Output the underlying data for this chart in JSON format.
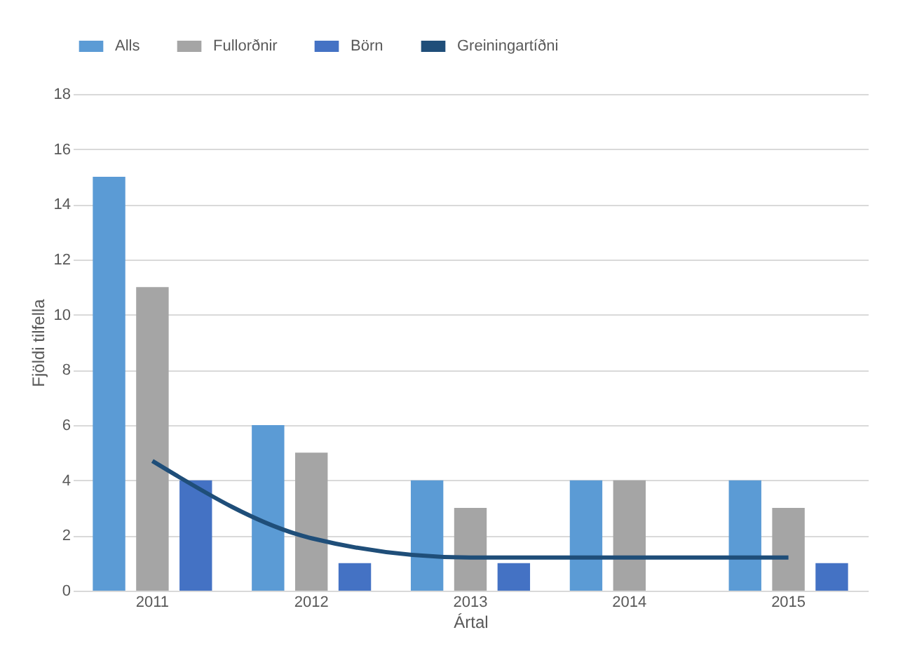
{
  "chart_data": {
    "type": "bar",
    "xlabel": "Ártal",
    "ylabel": "Fjöldi tilfella",
    "categories": [
      "2011",
      "2012",
      "2013",
      "2014",
      "2015"
    ],
    "series": [
      {
        "name": "Alls",
        "color": "#5b9bd5",
        "values": [
          15,
          6,
          4,
          4,
          4
        ]
      },
      {
        "name": "Fullorðnir",
        "color": "#a5a5a5",
        "values": [
          11,
          5,
          3,
          4,
          3
        ]
      },
      {
        "name": "Börn",
        "color": "#4472c4",
        "values": [
          4,
          1,
          1,
          null,
          1
        ]
      },
      {
        "name": "Greiningartíðni",
        "type": "line",
        "color": "#1f4e79",
        "values": [
          4.7,
          1.9,
          1.2,
          1.2,
          1.2
        ]
      }
    ],
    "ylim": [
      0,
      18
    ],
    "yticks": [
      0,
      2,
      4,
      6,
      8,
      10,
      12,
      14,
      16,
      18
    ],
    "grid": "y",
    "legend": "top"
  }
}
